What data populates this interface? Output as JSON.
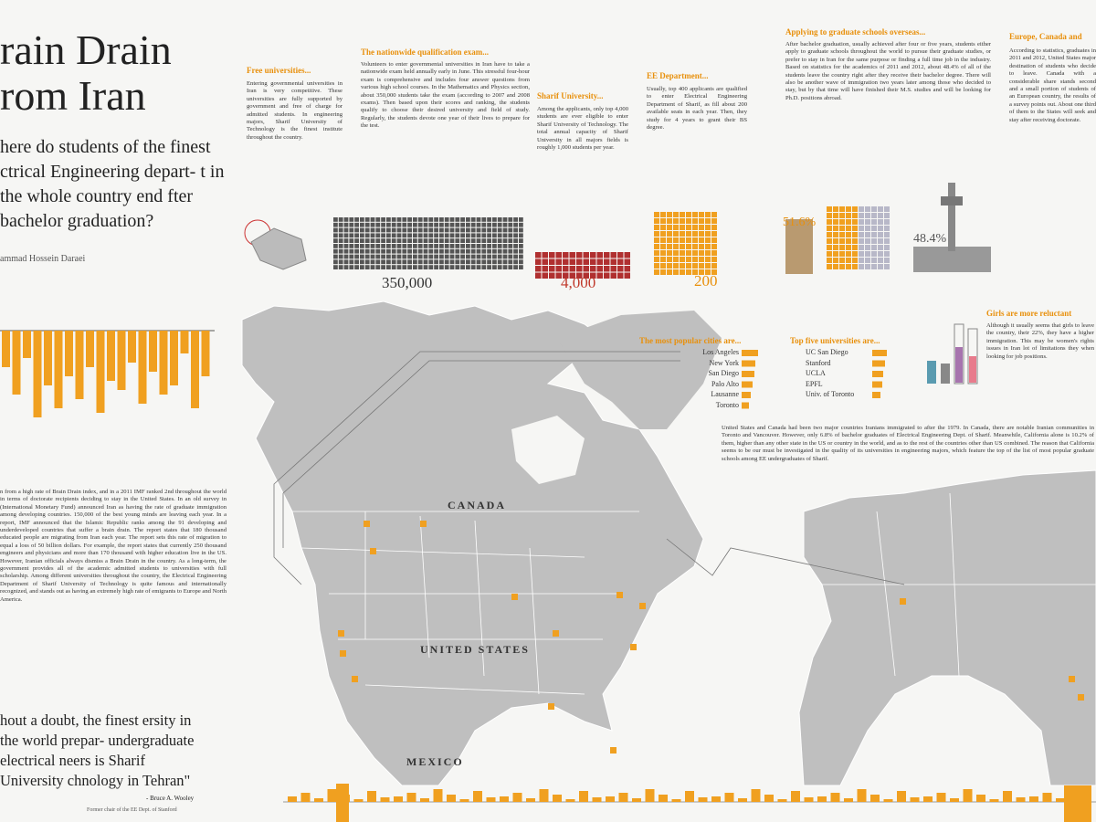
{
  "header": {
    "title": [
      "rain Drain",
      "rom Iran"
    ],
    "question": "here do students of the finest ctrical Engineering depart- t in the whole country end fter bachelor graduation?",
    "author": "ammad Hossein Daraei"
  },
  "intro": {
    "body": "n from a high rate of Brain Drain index, and in a 2011 IMF ranked 2nd throughout the world in terms of doctorate recipients deciding to stay in the United States. In an old survey in (International Monetary Fund) announced Iran as having the rate of graduate immigration among developing countries. 150,000 of the best young minds are leaving each year. In a report, IMF announced that the Islamic Republic ranks among the 91 developing and underdeveloped countries that suffer a brain drain. The report states that 180 thousand educated people are migrating from Iran each year. The report sets this rate of migration to equal a loss of 50 billion dollars. For example, the report states that currently 250 thousand engineers and physicians and more than 170 thousand with higher education live in the US. However, Iranian officials always dismiss a Brain Drain in the country. As a long-term, the government provides all of the academic admitted students to universities with full scholarship. Among different universities throughout the country, the Electrical Engineering Department of Sharif University of Technology is quite famous and internationally recognized, and stands out as having an extremely high rate of emigrants to Europe and North America."
  },
  "quote": {
    "text": "hout a doubt, the finest ersity in the world prepar- undergraduate electrical neers is Sharif University chnology in Tehran\"",
    "author": "- Bruce A. Wooley",
    "role": "Former chair of the EE Dept. of Stanford"
  },
  "sections": {
    "free": {
      "heading": "Free universities...",
      "body": "Entering governmental universities in Iran is very competitive. These universities are fully supported by government and free of charge for admitted students. In engineering majors, Sharif University of Technology is the finest institute throughout the country."
    },
    "exam": {
      "heading": "The nationwide qualification exam...",
      "body": "Volunteers to enter governmental universities in Iran have to take a nationwide exam held annually early in June. This stressful four-hour exam is comprehensive and includes four answer questions from various high school courses. In the Mathematics and Physics section, about 350,000 students take the exam (according to 2007 and 2008 exams). Then based upon their scores and ranking, the students qualify to choose their desired university and field of study. Regularly, the students devote one year of their lives to prepare for the test."
    },
    "sharif": {
      "heading": "Sharif University...",
      "body": "Among the applicants, only top 4,000 students are ever eligible to enter Sharif University of Technology. The total annual capacity of Sharif University in all majors fields is roughly 1,000 students per year."
    },
    "ee": {
      "heading": "EE Department...",
      "body": "Usually, top 400 applicants are qualified to enter Electrical Engineering Department of Sharif, as fill about 200 available seats in each year. Then, they study for 4 years to grant their BS degree."
    },
    "applying": {
      "heading": "Applying to graduate schools overseas...",
      "body": "After bachelor graduation, usually achieved after four or five years, students either apply to graduate schools throughout the world to pursue their graduate studies, or prefer to stay in Iran for the same purpose or finding a full time job in the industry. Based on statistics for the academics of 2011 and 2012, about 48.4% of all of the students leave the country right after they receive their bachelor degree. There will also be another wave of immigration two years later among those who decided to stay, but by that time will have finished their M.S. studies and will be looking for Ph.D. positions abroad."
    },
    "europe": {
      "heading": "Europe, Canada and",
      "body": "According to statistics, graduates in 2011 and 2012, United States major destination of students who decide to leave. Canada with a considerable share stands second and a small portion of students of an European country, the results of a survey points out. About one third of them to the States will seek and stay after receiving doctorate."
    },
    "girls": {
      "heading": "Girls are more reluctant",
      "body": "Although it usually seems that girls to leave the country, their 22%, they have a higher immigration. This may be women's rights issues in Iran lot of limitations they when looking for job positions."
    },
    "na": {
      "body": "United States and Canada had been two major countries Iranians immigrated to after the 1979. In Canada, there are notable Iranian communities in Toronto and Vancouver. However, only 6.8% of bachelor graduates of Electrical Engineering Dept. of Sharif. Meanwhile, California alone is 10.2% of them, higher than any other state in the US or country in the world, and as to the rest of the countries other than US combined. The reason that California seems to be our must be investigated in the quality of its universities in engineering majors, which feature the top of the list of most popular graduate schools among EE undergraduates of Sharif."
    }
  },
  "figures": {
    "applicants": "350,000",
    "sharif": "4,000",
    "ee": "200",
    "stay": "51.6%",
    "leave": "48.4%"
  },
  "cities": {
    "heading": "The most popular cities are...",
    "items": [
      "Los Angeles",
      "New York",
      "San Diego",
      "Palo Alto",
      "Lausanne",
      "Toronto"
    ]
  },
  "universities": {
    "heading": "Top five universities are...",
    "items": [
      "UC San Diego",
      "Stanford",
      "UCLA",
      "EPFL",
      "Univ. of Toronto"
    ]
  },
  "map": {
    "canada": "CANADA",
    "us": "UNITED STATES",
    "mexico": "MEXICO"
  }
}
